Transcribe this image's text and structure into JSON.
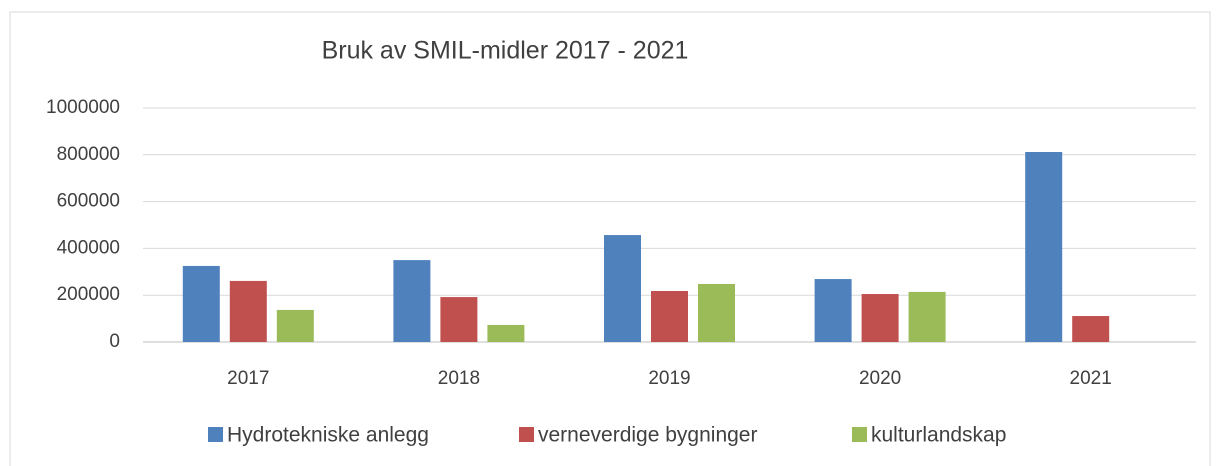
{
  "chart_data": {
    "type": "bar",
    "title": "Bruk av SMIL-midler 2017 - 2021",
    "categories": [
      "2017",
      "2018",
      "2019",
      "2020",
      "2021"
    ],
    "series": [
      {
        "name": "Hydrotekniske anlegg",
        "color": "#4f81bd",
        "values": [
          325000,
          350000,
          457000,
          269000,
          812000
        ]
      },
      {
        "name": "verneverdige bygninger",
        "color": "#c0504d",
        "values": [
          261000,
          192000,
          218000,
          205000,
          111000
        ]
      },
      {
        "name": "kulturlandskap",
        "color": "#9bbb59",
        "values": [
          137000,
          73000,
          248000,
          214000,
          0
        ]
      }
    ],
    "ylim": [
      0,
      1000000
    ],
    "yticks": [
      0,
      200000,
      400000,
      600000,
      800000,
      1000000
    ],
    "grid": true,
    "legend": "bottom"
  }
}
